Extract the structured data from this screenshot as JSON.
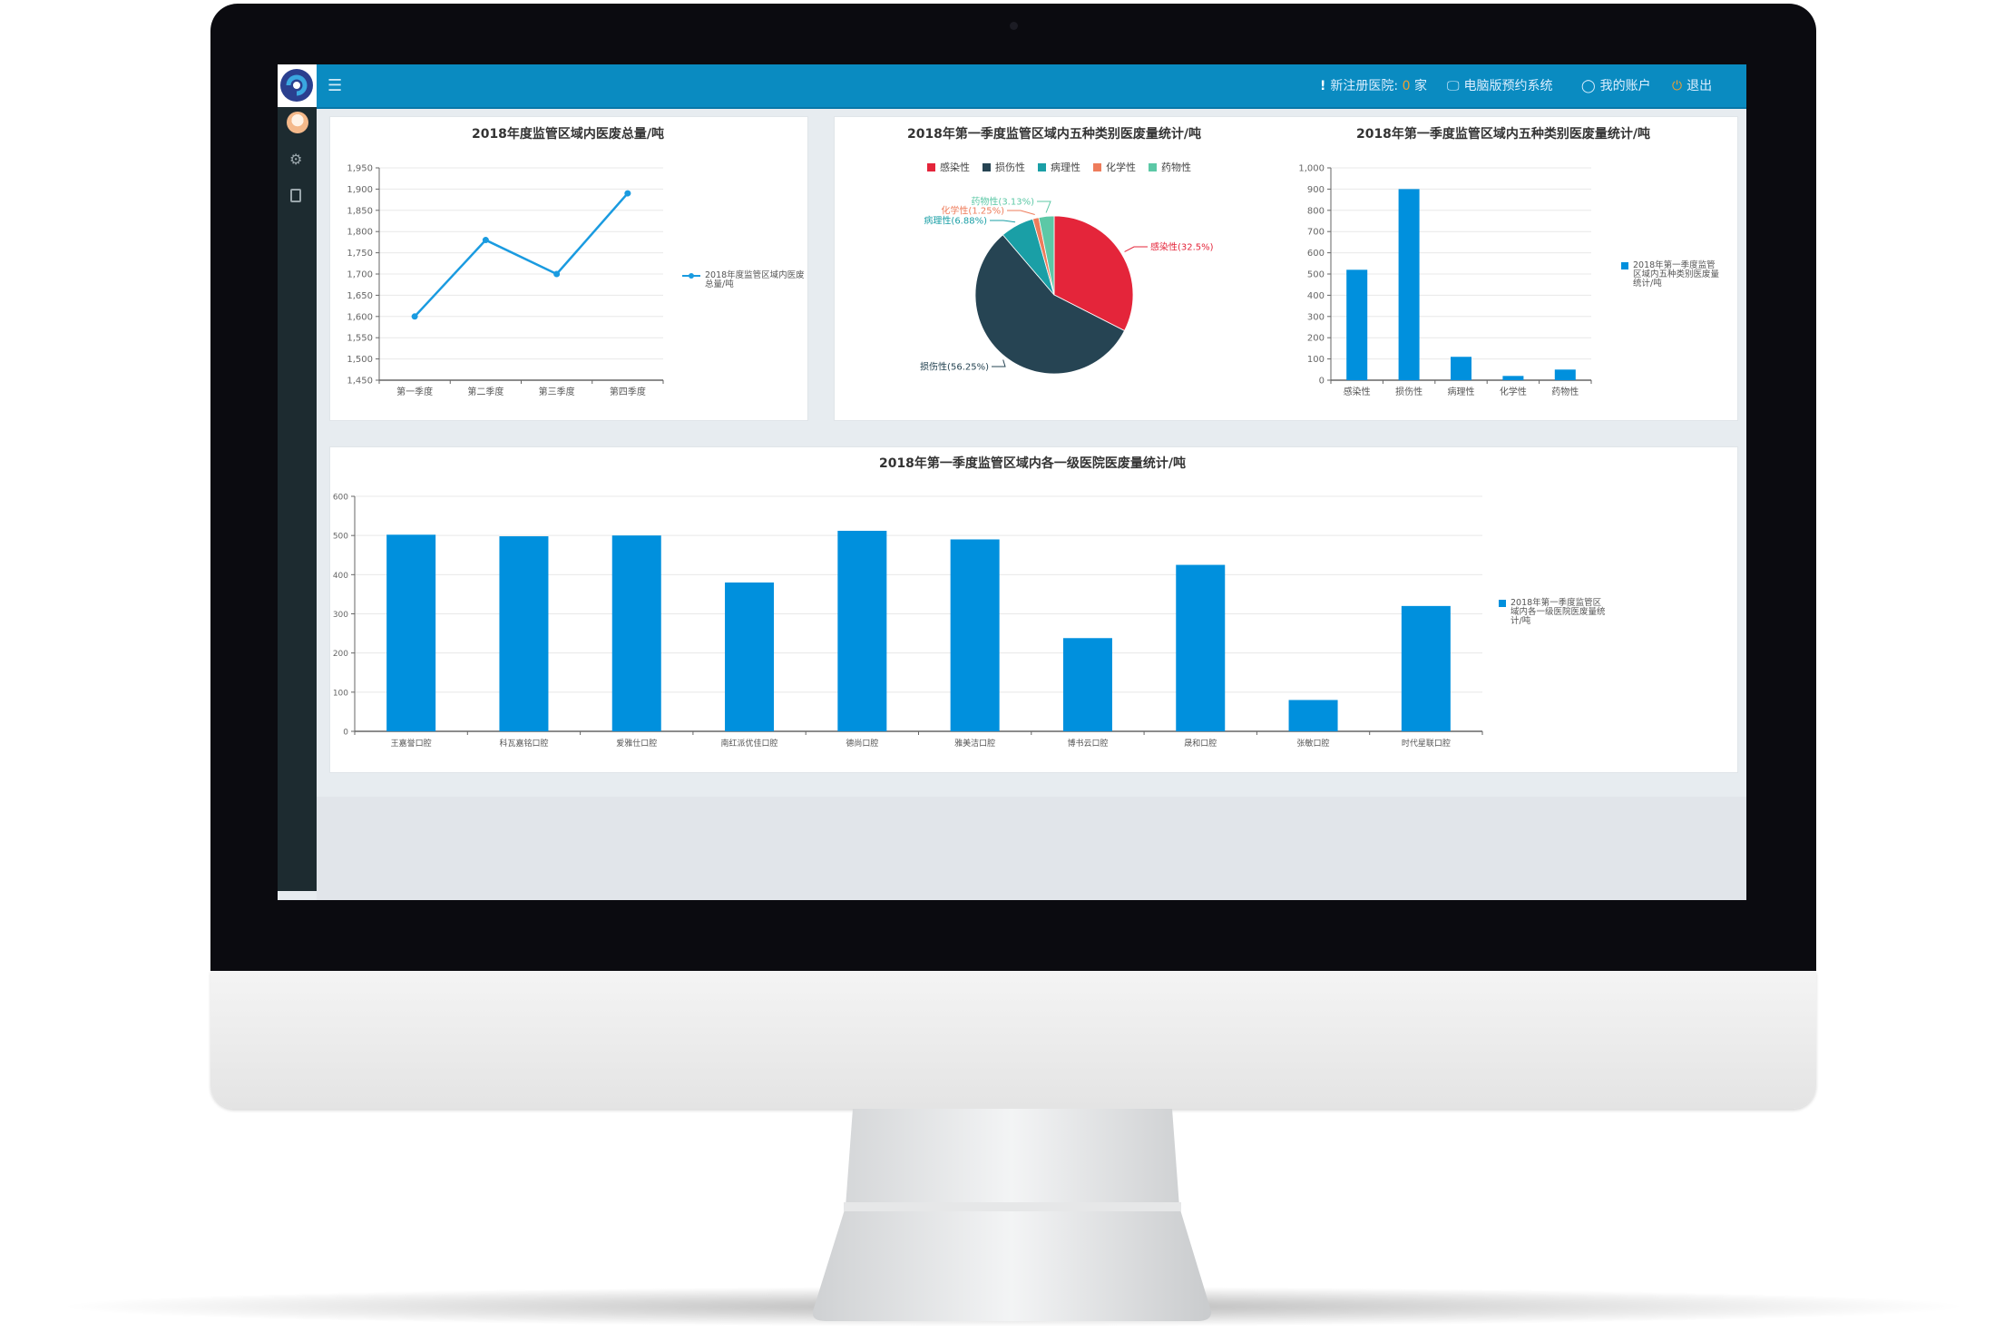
{
  "topbar": {
    "new_hospital_prefix": "新注册医院:",
    "new_hospital_count": "0",
    "new_hospital_unit": "家",
    "pc_booking": "电脑版预约系统",
    "my_account": "我的账户",
    "logout": "退出",
    "accent_color": "#0a8bc1",
    "count_color": "#f0a030"
  },
  "sidebar": {
    "items": [
      {
        "icon": "avatar-icon"
      },
      {
        "icon": "gear-icon"
      },
      {
        "icon": "clipboard-icon"
      }
    ]
  },
  "chart_data": [
    {
      "type": "line",
      "title": "2018年度监管区域内医废总量/吨",
      "categories": [
        "第一季度",
        "第二季度",
        "第三季度",
        "第四季度"
      ],
      "series": [
        {
          "name": "2018年度监管区域内医废总量/吨",
          "values": [
            1600,
            1780,
            1700,
            1890
          ]
        }
      ],
      "ylim": [
        1450,
        1950
      ],
      "ytick_step": 50,
      "grid": true,
      "legend": "right",
      "color": "#1a9be0"
    },
    {
      "type": "pie",
      "title": "2018年第一季度监管区域内五种类别医废量统计/吨",
      "categories": [
        "感染性",
        "损伤性",
        "病理性",
        "化学性",
        "药物性"
      ],
      "values": [
        32.5,
        56.25,
        6.88,
        1.25,
        3.13
      ],
      "labels": [
        "感染性(32.5%)",
        "损伤性(56.25%)",
        "病理性(6.88%)",
        "化学性(1.25%)",
        "药物性(3.13%)"
      ],
      "colors": [
        "#e4253a",
        "#264453",
        "#1a9fa6",
        "#ee7c5b",
        "#5cc8a6"
      ],
      "legend": "top"
    },
    {
      "type": "bar",
      "title": "2018年第一季度监管区域内五种类别医废量统计/吨",
      "categories": [
        "感染性",
        "损伤性",
        "病理性",
        "化学性",
        "药物性"
      ],
      "series": [
        {
          "name": "2018年第一季度监管区域内五种类别医废量统计/吨",
          "values": [
            520,
            900,
            110,
            20,
            50
          ]
        }
      ],
      "ylim": [
        0,
        1000
      ],
      "ytick_step": 100,
      "grid": true,
      "legend": "right",
      "color": "#0090dd"
    },
    {
      "type": "bar",
      "title": "2018年第一季度监管区域内各一级医院医废量统计/吨",
      "categories": [
        "王嘉誉口腔",
        "科瓦嘉铭口腔",
        "爱雅仕口腔",
        "南红派优佳口腔",
        "德尚口腔",
        "雅美洁口腔",
        "博书云口腔",
        "晟和口腔",
        "张敏口腔",
        "时代星联口腔"
      ],
      "series": [
        {
          "name": "2018年第一季度监管区域内各一级医院医废量统计/吨",
          "values": [
            502,
            498,
            500,
            380,
            512,
            490,
            238,
            425,
            80,
            320
          ]
        }
      ],
      "ylim": [
        0,
        600
      ],
      "ytick_step": 100,
      "grid": true,
      "legend": "right",
      "color": "#0090dd"
    }
  ]
}
